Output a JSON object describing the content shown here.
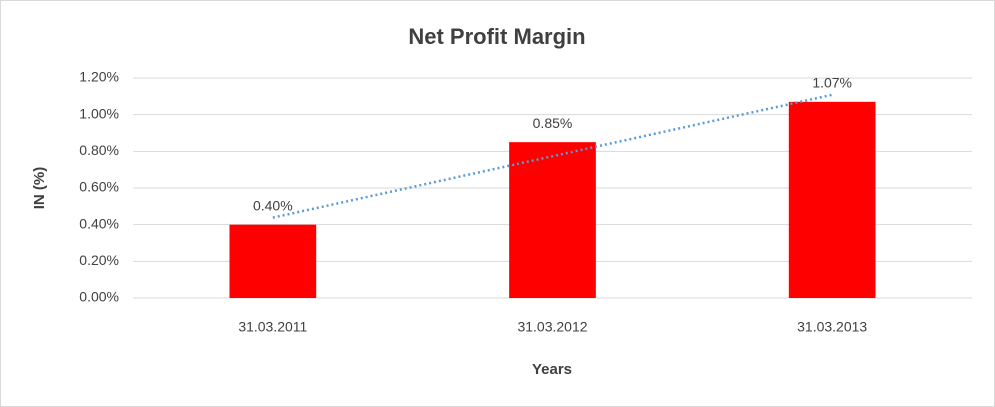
{
  "chart_data": {
    "type": "bar",
    "title": "Net Profit Margin",
    "x_label": "Years",
    "y_label": "IN (%)",
    "categories": [
      "31.03.2011",
      "31.03.2012",
      "31.03.2013"
    ],
    "values": [
      0.4,
      0.85,
      1.07
    ],
    "value_labels": [
      "0.40%",
      "0.85%",
      "1.07%"
    ],
    "color": "#ff0000",
    "ylim": [
      0,
      1.2
    ],
    "yticks": [
      {
        "value": 0,
        "label": "0.00%"
      },
      {
        "value": 0.2,
        "label": "0.20%"
      },
      {
        "value": 0.4,
        "label": "0.40%"
      },
      {
        "value": 0.6,
        "label": "0.60%"
      },
      {
        "value": 0.8,
        "label": "0.80%"
      },
      {
        "value": 1.0,
        "label": "1.00%"
      },
      {
        "value": 1.2,
        "label": "1.20%"
      }
    ],
    "grid": true,
    "trendline": {
      "type": "linear",
      "color": "#5b9bd5"
    }
  }
}
